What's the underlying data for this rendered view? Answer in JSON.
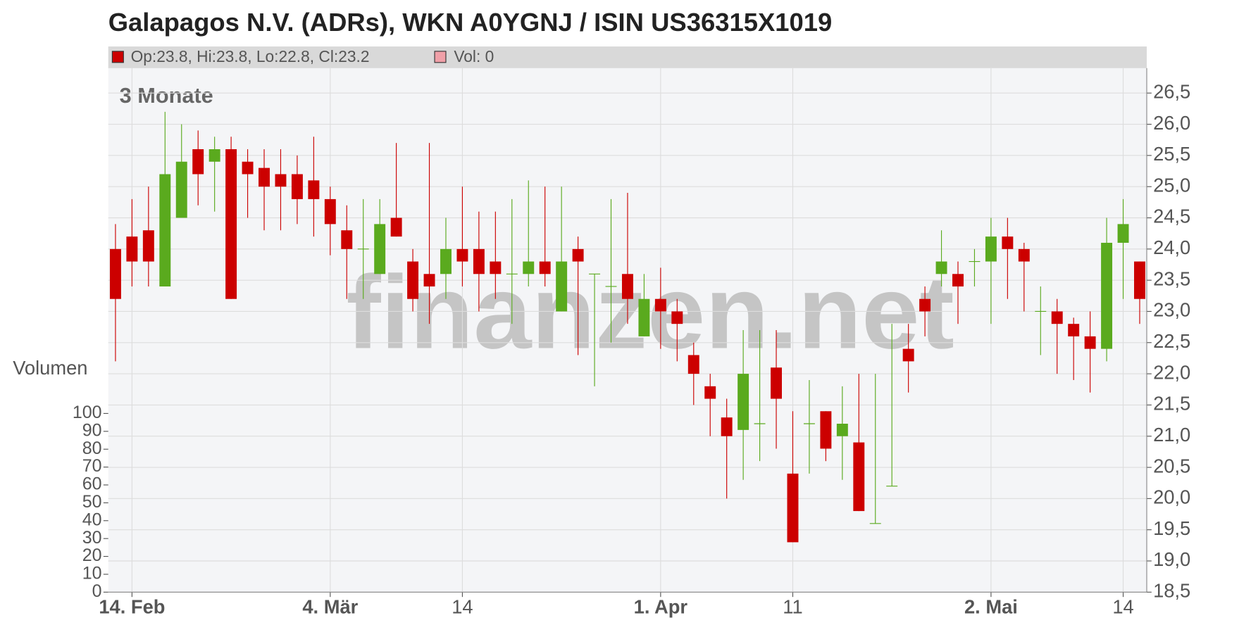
{
  "chart_data": {
    "type": "candlestick",
    "title": "Galapagos N.V. (ADRs), WKN A0YGNJ / ISIN US36315X1019",
    "legend": [
      "Op:23.8, Hi:23.8, Lo:22.8, Cl:23.2",
      "Vol: 0"
    ],
    "period_label": "3 Monate",
    "y2_label": "Volumen",
    "watermark": "finanzen.net",
    "up_color": "#5aaa1e",
    "down_color": "#cc0000",
    "grid": true,
    "open": [
      24.0,
      24.2,
      24.3,
      23.4,
      24.5,
      25.6,
      25.4,
      25.6,
      25.4,
      25.3,
      25.2,
      25.2,
      25.1,
      24.8,
      24.3,
      24.0,
      23.6,
      24.5,
      23.8,
      23.6,
      23.6,
      24.0,
      24.0,
      23.8,
      23.6,
      23.6,
      23.8,
      23.0,
      24.0,
      23.6,
      23.4,
      23.6,
      22.6,
      23.2,
      23.0,
      22.3,
      21.8,
      21.3,
      21.1,
      21.2,
      22.1,
      20.4,
      21.2,
      21.4,
      21.0,
      20.9,
      19.6,
      20.2,
      22.4,
      23.2,
      23.6,
      23.6,
      23.8,
      23.8,
      24.2,
      24.0,
      23.0,
      23.0,
      22.8,
      22.6,
      22.4,
      24.1,
      23.8
    ],
    "high": [
      24.4,
      24.8,
      25.0,
      26.2,
      26.0,
      25.9,
      25.8,
      25.8,
      25.6,
      25.6,
      25.6,
      25.5,
      25.8,
      25.0,
      24.7,
      24.8,
      24.8,
      25.7,
      24.0,
      25.7,
      24.5,
      25.0,
      24.6,
      24.6,
      24.8,
      25.1,
      25.0,
      25.0,
      24.2,
      23.6,
      24.8,
      24.9,
      23.6,
      23.7,
      23.2,
      22.5,
      22.0,
      21.6,
      22.7,
      22.7,
      22.7,
      21.4,
      21.9,
      21.4,
      21.8,
      22.0,
      22.0,
      22.8,
      22.8,
      23.4,
      24.3,
      23.8,
      24.0,
      24.5,
      24.5,
      24.1,
      23.4,
      23.2,
      22.9,
      23.0,
      24.5,
      24.8,
      23.8
    ],
    "low": [
      22.2,
      23.4,
      23.4,
      23.4,
      24.5,
      24.7,
      24.6,
      23.2,
      24.5,
      24.3,
      24.3,
      24.4,
      24.2,
      23.9,
      23.2,
      23.2,
      23.6,
      24.2,
      23.0,
      22.8,
      23.2,
      23.4,
      23.0,
      23.2,
      22.8,
      23.4,
      23.4,
      23.0,
      22.3,
      21.8,
      22.5,
      22.8,
      22.6,
      22.4,
      22.2,
      21.5,
      21.0,
      20.0,
      20.3,
      20.6,
      20.8,
      19.3,
      20.4,
      20.6,
      20.3,
      19.8,
      19.6,
      20.2,
      21.7,
      22.6,
      23.4,
      22.8,
      23.4,
      22.8,
      23.2,
      23.0,
      22.3,
      22.0,
      21.9,
      21.7,
      22.2,
      23.2,
      22.8
    ],
    "close": [
      23.2,
      23.8,
      23.8,
      25.2,
      25.4,
      25.2,
      25.6,
      23.2,
      25.2,
      25.0,
      25.0,
      24.8,
      24.8,
      24.4,
      24.0,
      24.0,
      24.4,
      24.2,
      23.2,
      23.4,
      24.0,
      23.8,
      23.6,
      23.6,
      23.6,
      23.8,
      23.6,
      23.8,
      23.8,
      23.6,
      23.4,
      23.2,
      23.2,
      23.0,
      22.8,
      22.0,
      21.6,
      21.0,
      22.0,
      21.2,
      21.6,
      19.3,
      21.2,
      20.8,
      21.2,
      19.8,
      19.6,
      20.2,
      22.2,
      23.0,
      23.8,
      23.4,
      23.8,
      24.2,
      24.0,
      23.8,
      23.0,
      22.8,
      22.6,
      22.4,
      24.1,
      24.4,
      23.2
    ],
    "ylim": [
      18.5,
      26.9
    ],
    "yticks": [
      {
        "value": 18.5,
        "label": "18,5"
      },
      {
        "value": 19.0,
        "label": "19,0"
      },
      {
        "value": 19.5,
        "label": "19,5"
      },
      {
        "value": 20.0,
        "label": "20,0"
      },
      {
        "value": 20.5,
        "label": "20,5"
      },
      {
        "value": 21.0,
        "label": "21,0"
      },
      {
        "value": 21.5,
        "label": "21,5"
      },
      {
        "value": 22.0,
        "label": "22,0"
      },
      {
        "value": 22.5,
        "label": "22,5"
      },
      {
        "value": 23.0,
        "label": "23,0"
      },
      {
        "value": 23.5,
        "label": "23,5"
      },
      {
        "value": 24.0,
        "label": "24,0"
      },
      {
        "value": 24.5,
        "label": "24,5"
      },
      {
        "value": 25.0,
        "label": "25,0"
      },
      {
        "value": 25.5,
        "label": "25,5"
      },
      {
        "value": 26.0,
        "label": "26,0"
      },
      {
        "value": 26.5,
        "label": "26,5"
      }
    ],
    "y2lim": [
      0,
      100
    ],
    "y2ticks": [
      0,
      10,
      20,
      30,
      40,
      50,
      60,
      70,
      80,
      90,
      100
    ],
    "xticks": [
      {
        "value": 1,
        "label": "14. Feb"
      },
      {
        "value": 13,
        "label": "4. Mär"
      },
      {
        "value": 21,
        "label": "14"
      },
      {
        "value": 33,
        "label": "1. Apr"
      },
      {
        "value": 41,
        "label": "11"
      },
      {
        "value": 53,
        "label": "2. Mai"
      },
      {
        "value": 61,
        "label": "14"
      }
    ]
  }
}
